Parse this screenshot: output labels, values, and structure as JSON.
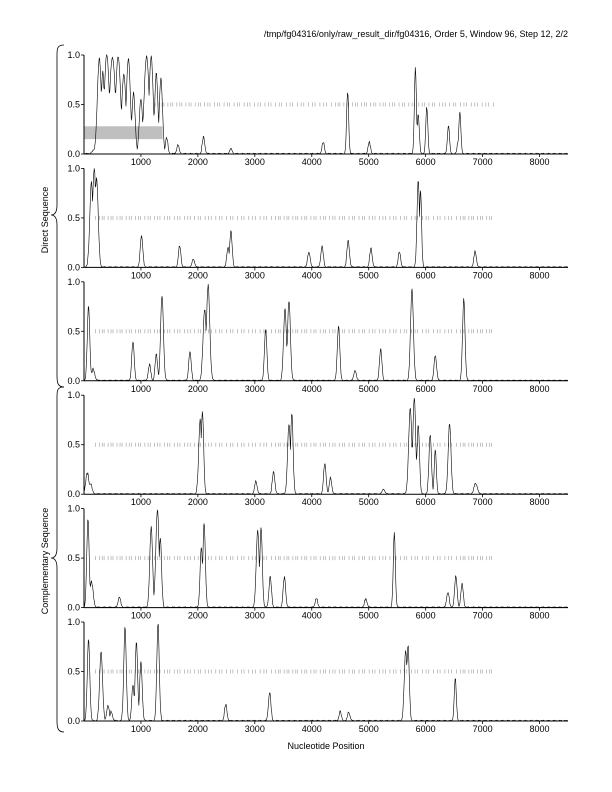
{
  "header": {
    "title": "/tmp/fg04316/only/raw_result_dir/fg04316, Order 5, Window 96, Step 12, 2/2"
  },
  "labels": {
    "xlabel": "Nucleotide Position",
    "direct": "Direct Sequence",
    "complementary": "Complementary Sequence"
  },
  "colors": {
    "line": "#000000",
    "tick": "#9a9a9a",
    "highlight": "#bfbfbf"
  },
  "chart_data": [
    {
      "type": "line",
      "group": "Direct Sequence",
      "xlim": [
        0,
        8500
      ],
      "ylim": [
        0,
        1.0
      ],
      "xticks": [
        1000,
        2000,
        3000,
        4000,
        5000,
        6000,
        7000,
        8000
      ],
      "yticks": [
        0.0,
        0.5,
        1.0
      ],
      "highlight": {
        "x": [
          0,
          1380
        ],
        "y": [
          0.15,
          0.28
        ]
      },
      "peaks": [
        [
          200,
          0.05,
          60
        ],
        [
          270,
          0.95,
          50
        ],
        [
          330,
          0.82,
          40
        ],
        [
          400,
          1.0,
          60
        ],
        [
          500,
          0.97,
          70
        ],
        [
          600,
          0.98,
          60
        ],
        [
          700,
          0.8,
          50
        ],
        [
          780,
          0.95,
          50
        ],
        [
          870,
          0.6,
          40
        ],
        [
          1000,
          0.55,
          40
        ],
        [
          1100,
          0.98,
          60
        ],
        [
          1180,
          0.97,
          50
        ],
        [
          1270,
          0.8,
          40
        ],
        [
          1350,
          0.75,
          40
        ],
        [
          1450,
          0.15,
          30
        ],
        [
          1650,
          0.08,
          30
        ],
        [
          2100,
          0.16,
          30
        ],
        [
          2580,
          0.05,
          30
        ],
        [
          4200,
          0.1,
          30
        ],
        [
          4630,
          0.62,
          25
        ],
        [
          5010,
          0.1,
          30
        ],
        [
          5820,
          0.86,
          25
        ],
        [
          5870,
          0.4,
          25
        ],
        [
          6020,
          0.46,
          25
        ],
        [
          6400,
          0.28,
          25
        ],
        [
          6580,
          0.14,
          30
        ],
        [
          6600,
          0.42,
          25
        ]
      ],
      "tick_row": {
        "y": 0.5,
        "x_start": 1250,
        "x_end": 7200
      }
    },
    {
      "type": "line",
      "group": "Direct Sequence",
      "xlim": [
        0,
        8500
      ],
      "ylim": [
        0,
        1.0
      ],
      "xticks": [
        1000,
        2000,
        3000,
        4000,
        5000,
        6000,
        7000,
        8000
      ],
      "yticks": [
        0.0,
        0.5,
        1.0
      ],
      "peaks": [
        [
          130,
          0.85,
          40
        ],
        [
          180,
          1.0,
          40
        ],
        [
          220,
          0.9,
          40
        ],
        [
          1010,
          0.32,
          30
        ],
        [
          1680,
          0.2,
          30
        ],
        [
          1920,
          0.08,
          30
        ],
        [
          2530,
          0.2,
          30
        ],
        [
          2580,
          0.35,
          30
        ],
        [
          3950,
          0.15,
          30
        ],
        [
          4180,
          0.2,
          30
        ],
        [
          4640,
          0.26,
          30
        ],
        [
          5040,
          0.18,
          30
        ],
        [
          5540,
          0.14,
          30
        ],
        [
          5870,
          0.88,
          30
        ],
        [
          5910,
          0.78,
          25
        ],
        [
          6870,
          0.15,
          30
        ]
      ],
      "tick_row": {
        "y": 0.5,
        "x_start": 200,
        "x_end": 7200
      }
    },
    {
      "type": "line",
      "group": "Direct Sequence",
      "xlim": [
        0,
        8500
      ],
      "ylim": [
        0,
        1.0
      ],
      "xticks": [
        1000,
        2000,
        3000,
        4000,
        5000,
        6000,
        7000,
        8000
      ],
      "yticks": [
        0.0,
        0.5,
        1.0
      ],
      "peaks": [
        [
          80,
          0.75,
          30
        ],
        [
          160,
          0.1,
          40
        ],
        [
          860,
          0.38,
          30
        ],
        [
          1150,
          0.15,
          30
        ],
        [
          1270,
          0.25,
          30
        ],
        [
          1370,
          0.85,
          35
        ],
        [
          1860,
          0.28,
          30
        ],
        [
          2120,
          0.72,
          40
        ],
        [
          2180,
          0.95,
          40
        ],
        [
          3190,
          0.5,
          30
        ],
        [
          3530,
          0.72,
          35
        ],
        [
          3600,
          0.8,
          35
        ],
        [
          4470,
          0.55,
          30
        ],
        [
          4760,
          0.1,
          30
        ],
        [
          5210,
          0.3,
          30
        ],
        [
          5760,
          0.92,
          35
        ],
        [
          6170,
          0.25,
          30
        ],
        [
          6670,
          0.82,
          30
        ]
      ],
      "tick_row": {
        "y": 0.5,
        "x_start": 200,
        "x_end": 7200
      }
    },
    {
      "type": "line",
      "group": "Complementary Sequence",
      "xlim": [
        0,
        8500
      ],
      "ylim": [
        0,
        1.0
      ],
      "xticks": [
        1000,
        2000,
        3000,
        4000,
        5000,
        6000,
        7000,
        8000
      ],
      "yticks": [
        0.0,
        0.5,
        1.0
      ],
      "peaks": [
        [
          60,
          0.2,
          40
        ],
        [
          110,
          0.1,
          40
        ],
        [
          2040,
          0.75,
          35
        ],
        [
          2080,
          0.82,
          30
        ],
        [
          3020,
          0.12,
          30
        ],
        [
          3330,
          0.22,
          30
        ],
        [
          3600,
          0.7,
          35
        ],
        [
          3650,
          0.82,
          30
        ],
        [
          4230,
          0.3,
          30
        ],
        [
          4330,
          0.15,
          30
        ],
        [
          5260,
          0.05,
          30
        ],
        [
          5730,
          0.85,
          40
        ],
        [
          5800,
          0.97,
          35
        ],
        [
          5870,
          0.7,
          30
        ],
        [
          6080,
          0.6,
          30
        ],
        [
          6170,
          0.45,
          25
        ],
        [
          6420,
          0.7,
          35
        ],
        [
          6880,
          0.1,
          40
        ]
      ],
      "tick_row": {
        "y": 0.5,
        "x_start": 200,
        "x_end": 7200
      }
    },
    {
      "type": "line",
      "group": "Complementary Sequence",
      "xlim": [
        0,
        8500
      ],
      "ylim": [
        0,
        1.0
      ],
      "xticks": [
        1000,
        2000,
        3000,
        4000,
        5000,
        6000,
        7000,
        8000
      ],
      "yticks": [
        0.0,
        0.5,
        1.0
      ],
      "peaks": [
        [
          70,
          0.88,
          30
        ],
        [
          130,
          0.25,
          40
        ],
        [
          620,
          0.1,
          30
        ],
        [
          1180,
          0.8,
          35
        ],
        [
          1290,
          0.98,
          40
        ],
        [
          1340,
          0.7,
          30
        ],
        [
          2060,
          0.6,
          30
        ],
        [
          2110,
          0.85,
          30
        ],
        [
          3050,
          0.78,
          35
        ],
        [
          3110,
          0.8,
          30
        ],
        [
          3270,
          0.3,
          30
        ],
        [
          3520,
          0.3,
          30
        ],
        [
          4080,
          0.08,
          30
        ],
        [
          4950,
          0.08,
          30
        ],
        [
          5450,
          0.75,
          25
        ],
        [
          6390,
          0.15,
          30
        ],
        [
          6530,
          0.3,
          30
        ],
        [
          6640,
          0.22,
          30
        ]
      ],
      "tick_row": {
        "y": 0.5,
        "x_start": 200,
        "x_end": 7200
      }
    },
    {
      "type": "line",
      "group": "Complementary Sequence",
      "xlim": [
        0,
        8500
      ],
      "ylim": [
        0,
        1.0
      ],
      "xticks": [
        1000,
        2000,
        3000,
        4000,
        5000,
        6000,
        7000,
        8000
      ],
      "yticks": [
        0.0,
        0.5,
        1.0
      ],
      "peaks": [
        [
          80,
          0.82,
          30
        ],
        [
          300,
          0.7,
          35
        ],
        [
          420,
          0.15,
          30
        ],
        [
          480,
          0.08,
          30
        ],
        [
          720,
          0.95,
          30
        ],
        [
          860,
          0.35,
          30
        ],
        [
          920,
          0.8,
          30
        ],
        [
          1000,
          0.6,
          30
        ],
        [
          1300,
          0.98,
          30
        ],
        [
          2490,
          0.15,
          30
        ],
        [
          3260,
          0.28,
          30
        ],
        [
          4500,
          0.08,
          30
        ],
        [
          4650,
          0.08,
          30
        ],
        [
          5650,
          0.7,
          35
        ],
        [
          5690,
          0.76,
          30
        ],
        [
          6520,
          0.42,
          25
        ]
      ],
      "tick_row": {
        "y": 0.5,
        "x_start": 200,
        "x_end": 7200
      }
    }
  ]
}
